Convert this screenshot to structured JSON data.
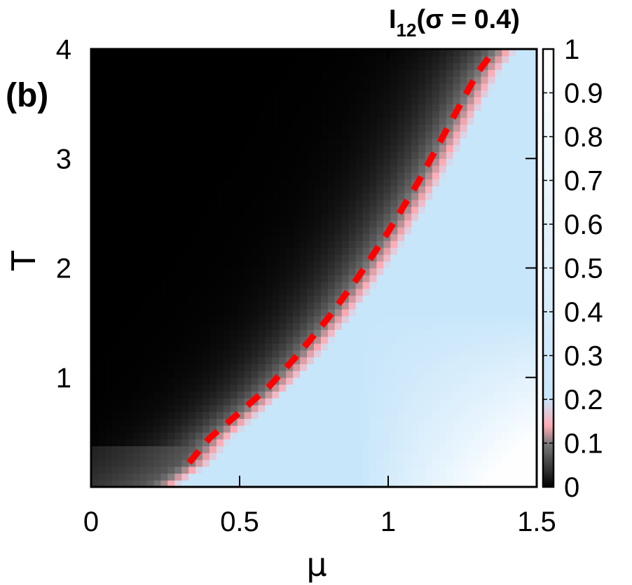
{
  "chart_data": {
    "type": "heatmap",
    "panel_label": "(b)",
    "xlabel": "μ",
    "ylabel": "T",
    "xlim": [
      0,
      1.5
    ],
    "ylim": [
      0,
      4
    ],
    "xticks": [
      "0",
      "0.5",
      "1",
      "1.5"
    ],
    "yticks": [
      "1",
      "2",
      "3",
      "4"
    ],
    "xtick_values": [
      0,
      0.5,
      1,
      1.5
    ],
    "ytick_values": [
      1,
      2,
      3,
      4
    ],
    "colorbar": {
      "title_main": "I",
      "title_sub": "12",
      "title_rest": "(σ = 0.4)",
      "range": [
        0,
        1
      ],
      "ticks": [
        "0",
        "0.1",
        "0.2",
        "0.3",
        "0.4",
        "0.5",
        "0.6",
        "0.7",
        "0.8",
        "0.9",
        "1"
      ],
      "tick_values": [
        0,
        0.1,
        0.2,
        0.3,
        0.4,
        0.5,
        0.6,
        0.7,
        0.8,
        0.9,
        1
      ],
      "palette": [
        {
          "v": 0.0,
          "color": "#000000"
        },
        {
          "v": 0.1,
          "color": "#7a7a7a"
        },
        {
          "v": 0.14,
          "color": "#ffaab4"
        },
        {
          "v": 0.2,
          "color": "#c8e6fa"
        },
        {
          "v": 1.0,
          "color": "#ffffff"
        }
      ]
    },
    "overlay_curve": {
      "style": "dashed",
      "color": "#ff0000",
      "points": [
        {
          "x": 0.33,
          "y": 0.22
        },
        {
          "x": 0.4,
          "y": 0.45
        },
        {
          "x": 0.5,
          "y": 0.68
        },
        {
          "x": 0.6,
          "y": 0.92
        },
        {
          "x": 0.7,
          "y": 1.22
        },
        {
          "x": 0.8,
          "y": 1.55
        },
        {
          "x": 0.9,
          "y": 1.92
        },
        {
          "x": 1.0,
          "y": 2.33
        },
        {
          "x": 1.1,
          "y": 2.78
        },
        {
          "x": 1.2,
          "y": 3.28
        },
        {
          "x": 1.3,
          "y": 3.78
        },
        {
          "x": 1.36,
          "y": 4.0
        }
      ]
    }
  }
}
